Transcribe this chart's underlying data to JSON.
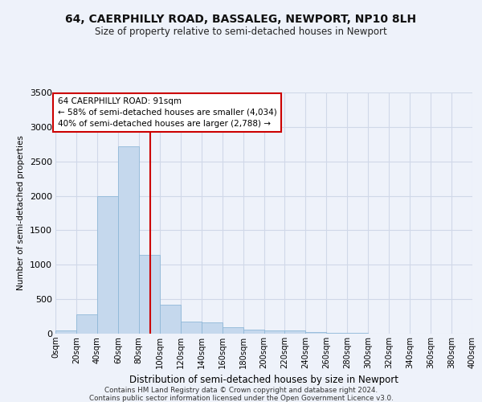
{
  "title": "64, CAERPHILLY ROAD, BASSALEG, NEWPORT, NP10 8LH",
  "subtitle": "Size of property relative to semi-detached houses in Newport",
  "xlabel": "Distribution of semi-detached houses by size in Newport",
  "ylabel": "Number of semi-detached properties",
  "footnote1": "Contains HM Land Registry data © Crown copyright and database right 2024.",
  "footnote2": "Contains public sector information licensed under the Open Government Licence v3.0.",
  "annotation_title": "64 CAERPHILLY ROAD: 91sqm",
  "annotation_line1": "← 58% of semi-detached houses are smaller (4,034)",
  "annotation_line2": "40% of semi-detached houses are larger (2,788) →",
  "property_size": 91,
  "bin_edges": [
    0,
    20,
    40,
    60,
    80,
    100,
    120,
    140,
    160,
    180,
    200,
    220,
    240,
    260,
    280,
    300,
    320,
    340,
    360,
    380,
    400
  ],
  "bar_heights": [
    50,
    280,
    2000,
    2720,
    1140,
    420,
    170,
    160,
    90,
    60,
    50,
    50,
    20,
    15,
    10,
    5,
    5,
    5,
    2,
    2
  ],
  "bar_color": "#c5d8ed",
  "bar_edge_color": "#8fb8d8",
  "vline_color": "#cc0000",
  "ylim": [
    0,
    3500
  ],
  "yticks": [
    0,
    500,
    1000,
    1500,
    2000,
    2500,
    3000,
    3500
  ],
  "bg_color": "#eef2fa",
  "grid_color": "#d0d8e8",
  "annotation_box_color": "#ffffff",
  "annotation_box_edge": "#cc0000",
  "title_fontsize": 10,
  "subtitle_fontsize": 8.5
}
